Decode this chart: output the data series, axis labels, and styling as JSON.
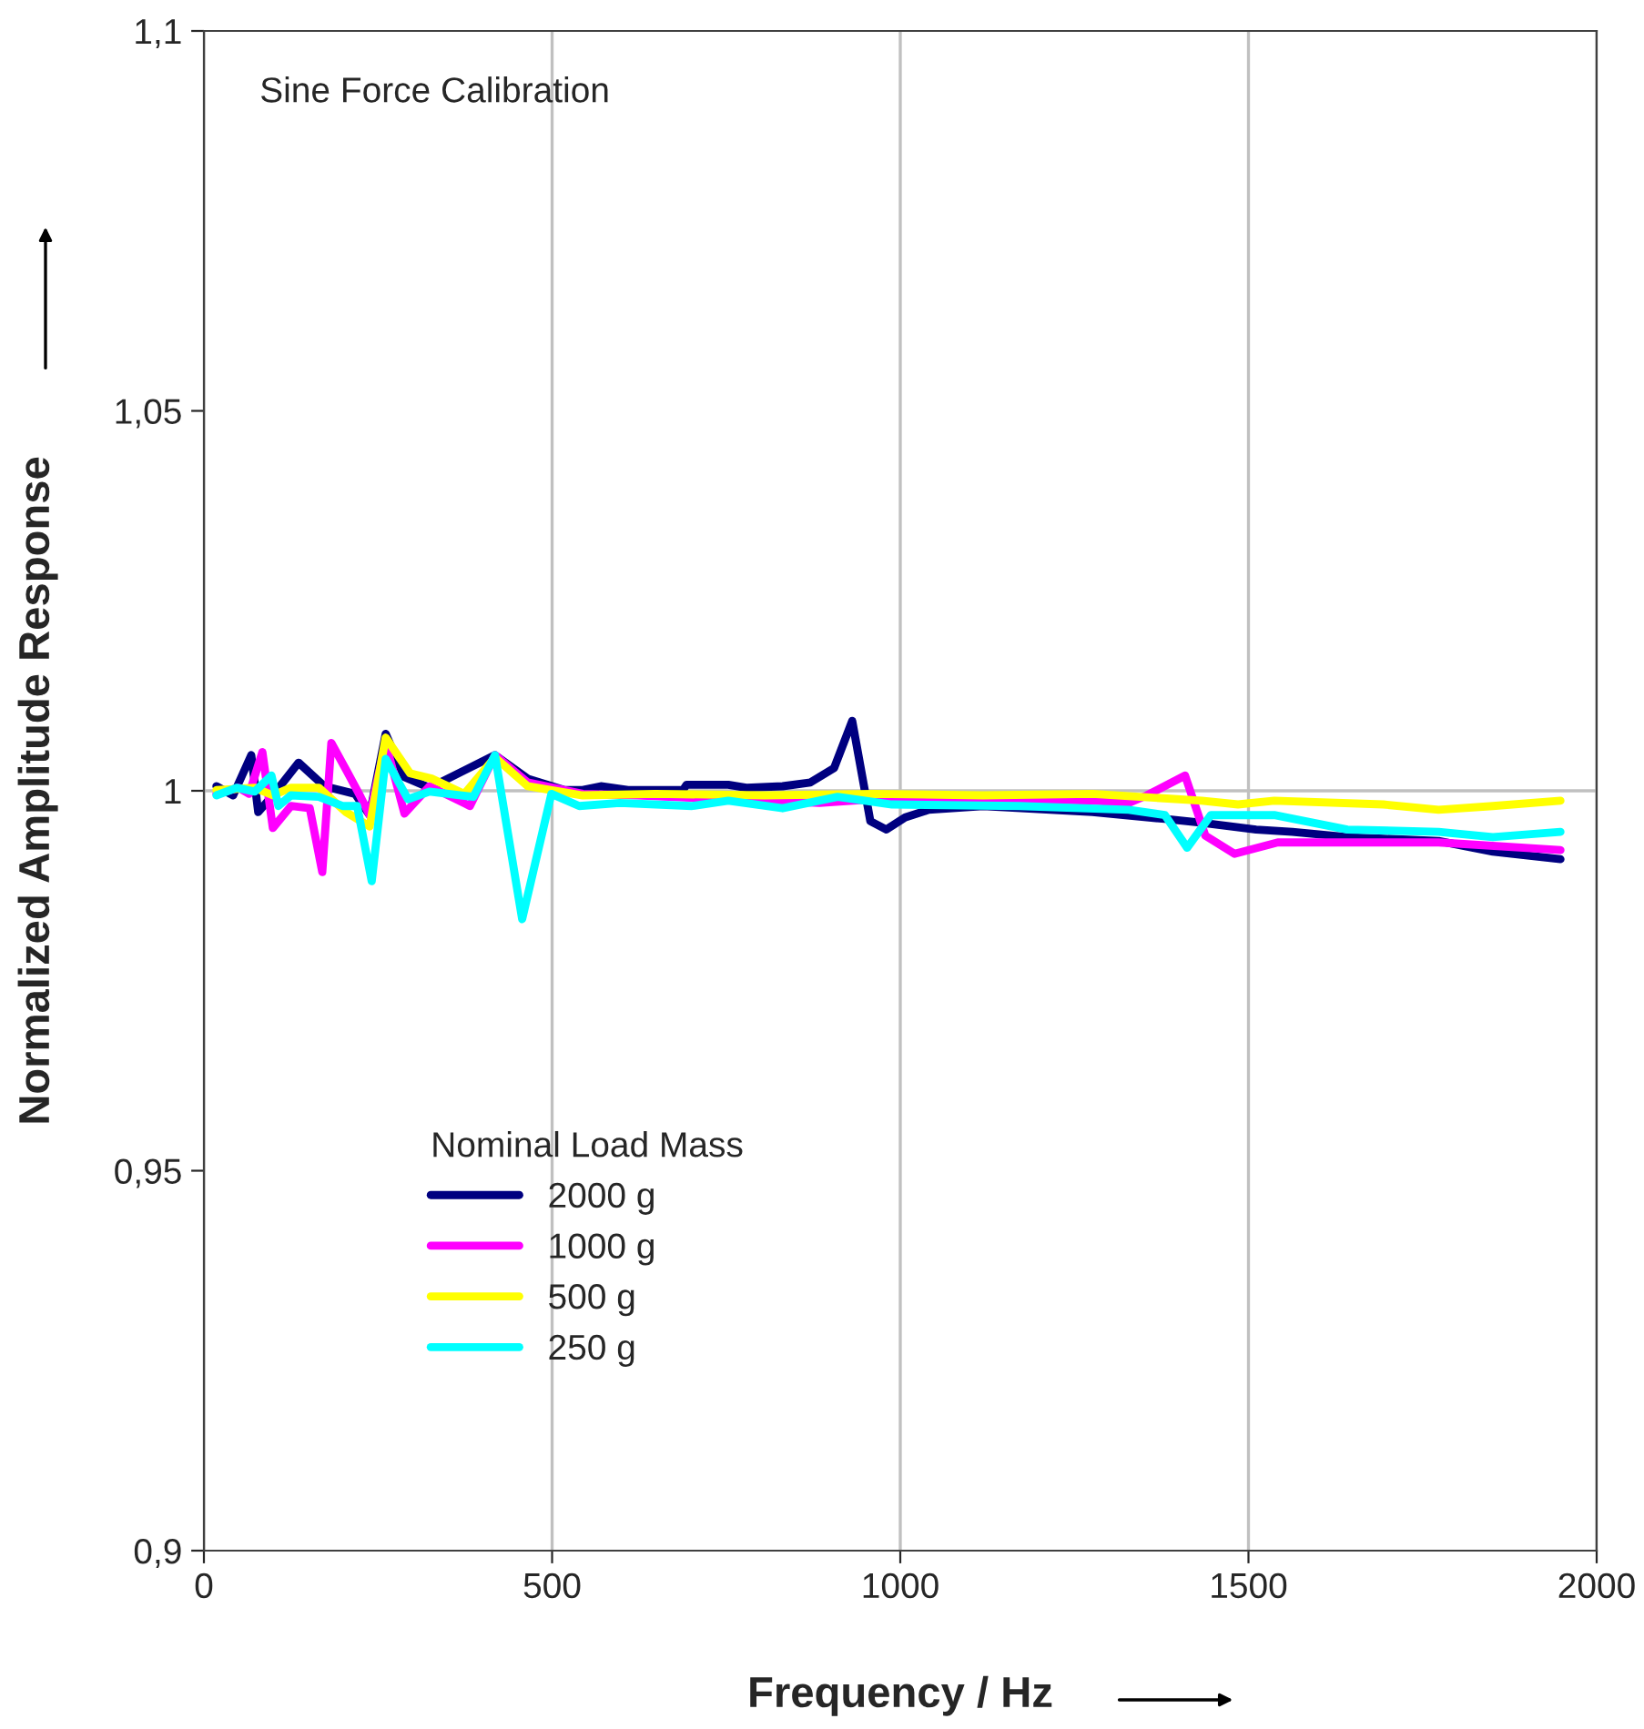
{
  "chart_data": {
    "type": "line",
    "xlabel": "Frequency / Hz",
    "ylabel": "Normalized Amplitude Response",
    "legend_title": "Nominal Load Mass",
    "annotations": [
      "Sine Force Calibration"
    ],
    "xlim": [
      0,
      2000
    ],
    "xticks": [
      0,
      500,
      1000,
      1500,
      2000
    ],
    "ylim": [
      0.9,
      1.1
    ],
    "yticks": [
      {
        "value": 0.9,
        "label": "0,9"
      },
      {
        "value": 0.95,
        "label": "0,95"
      },
      {
        "value": 1,
        "label": "1"
      },
      {
        "value": 1.05,
        "label": "1,05"
      },
      {
        "value": 1.1,
        "label": "1,1"
      }
    ],
    "grid": "x",
    "legend": "bottom left",
    "marker": "none",
    "line_style": "solid",
    "ref_lines": [
      {
        "axis": "y",
        "value": 1,
        "label": null,
        "color": "#c0c0c0"
      }
    ],
    "series": [
      {
        "name": "2000 g",
        "color": "#000080",
        "x": [
          18,
          42,
          68,
          78,
          99,
          136,
          173,
          217,
          238,
          261,
          288,
          324,
          418,
          465,
          518,
          544,
          570,
          609,
          688,
          693,
          753,
          779,
          831,
          871,
          905,
          931,
          957,
          980,
          1007,
          1041,
          1119,
          1276,
          1380,
          1433,
          1511,
          1563,
          1642,
          1773,
          1851,
          1948
        ],
        "values": [
          1.0006,
          0.9994,
          1.0047,
          0.9972,
          0.9994,
          1.0037,
          1.0006,
          0.9996,
          0.9968,
          1.0075,
          1.0018,
          1.0004,
          1.0047,
          1.0016,
          1.0001,
          1.0001,
          1.0006,
          1.0001,
          1.0001,
          1.0008,
          1.0008,
          1.0004,
          1.0006,
          1.0011,
          1.003,
          1.0092,
          0.996,
          0.9949,
          0.9965,
          0.9975,
          0.998,
          0.9972,
          0.9963,
          0.9958,
          0.9949,
          0.9946,
          0.9939,
          0.9934,
          0.992,
          0.991
        ]
      },
      {
        "name": "1000 g",
        "color": "#ff00ff",
        "x": [
          18,
          50,
          65,
          84,
          99,
          125,
          152,
          170,
          183,
          207,
          225,
          238,
          261,
          288,
          324,
          382,
          418,
          465,
          544,
          622,
          884,
          1014,
          1171,
          1276,
          1328,
          1354,
          1409,
          1438,
          1480,
          1542,
          1642,
          1773,
          1948
        ],
        "values": [
          0.9996,
          1.0004,
          0.9996,
          1.0051,
          0.9951,
          0.998,
          0.9977,
          0.9893,
          1.0063,
          1.0023,
          0.9992,
          0.9968,
          1.0063,
          0.997,
          1.0006,
          0.998,
          1.0047,
          1.0011,
          0.9996,
          0.9994,
          0.9984,
          0.9992,
          0.9989,
          0.9987,
          0.9984,
          0.9994,
          1.002,
          0.9941,
          0.9917,
          0.9932,
          0.9932,
          0.9932,
          0.9922
        ]
      },
      {
        "name": "500 g",
        "color": "#ffff00",
        "x": [
          18,
          73,
          99,
          125,
          165,
          204,
          238,
          261,
          296,
          327,
          374,
          418,
          465,
          544,
          648,
          805,
          962,
          1119,
          1276,
          1433,
          1485,
          1537,
          1694,
          1773,
          1851,
          1948
        ],
        "values": [
          1.0001,
          1.0004,
          0.9994,
          1.0004,
          1.0004,
          0.9972,
          0.9953,
          1.007,
          1.0023,
          1.0016,
          0.9996,
          1.0044,
          1.0006,
          0.9994,
          0.9996,
          0.9994,
          0.9996,
          0.9994,
          0.9996,
          0.9987,
          0.9982,
          0.9987,
          0.9982,
          0.9975,
          0.998,
          0.9987
        ]
      },
      {
        "name": "250 g",
        "color": "#00ffff",
        "x": [
          18,
          47,
          73,
          97,
          107,
          125,
          165,
          199,
          220,
          241,
          261,
          293,
          324,
          387,
          418,
          457,
          499,
          539,
          597,
          701,
          753,
          831,
          910,
          988,
          1171,
          1328,
          1380,
          1412,
          1446,
          1537,
          1642,
          1773,
          1851,
          1948
        ],
        "values": [
          0.9994,
          1.0004,
          0.9999,
          1.002,
          0.998,
          0.9994,
          0.9992,
          0.998,
          0.998,
          0.9881,
          1.0042,
          0.9989,
          0.9999,
          0.9992,
          1.0047,
          0.9831,
          0.9996,
          0.998,
          0.9984,
          0.998,
          0.9987,
          0.9977,
          0.9992,
          0.9982,
          0.998,
          0.9975,
          0.9968,
          0.9925,
          0.9968,
          0.9968,
          0.9949,
          0.9946,
          0.9939,
          0.9946
        ]
      }
    ]
  }
}
